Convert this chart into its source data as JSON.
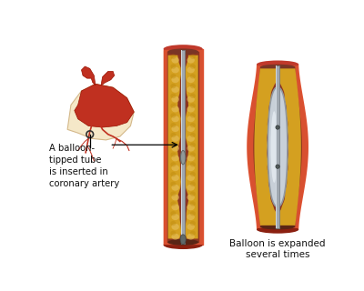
{
  "bg_color": "#ffffff",
  "artery_wall_outer": "#c0392b",
  "artery_wall_mid": "#e05030",
  "artery_wall_inner": "#c84030",
  "lumen_bg": "#8b3520",
  "plaque_color": "#d4a020",
  "plaque_dark": "#b8860b",
  "plaque_light": "#e8c060",
  "catheter_color": "#a0a8b0",
  "catheter_light": "#d0d8e0",
  "catheter_dark": "#707880",
  "balloon_fill": "#c8d0d8",
  "balloon_light": "#e8eef4",
  "balloon_edge": "#9098a0",
  "heart_body": "#c03020",
  "heart_light": "#e04030",
  "heart_bg": "#f5e8c8",
  "vessel_color": "#c03020",
  "text_color": "#111111",
  "label1_line1": "A balloon-",
  "label1_line2": "tipped tube",
  "label1_line3": "is inserted in",
  "label1_line4": "coronary artery",
  "label2": "Balloon is expanded\nseveral times",
  "fig_width": 4.0,
  "fig_height": 3.2,
  "dpi": 100
}
